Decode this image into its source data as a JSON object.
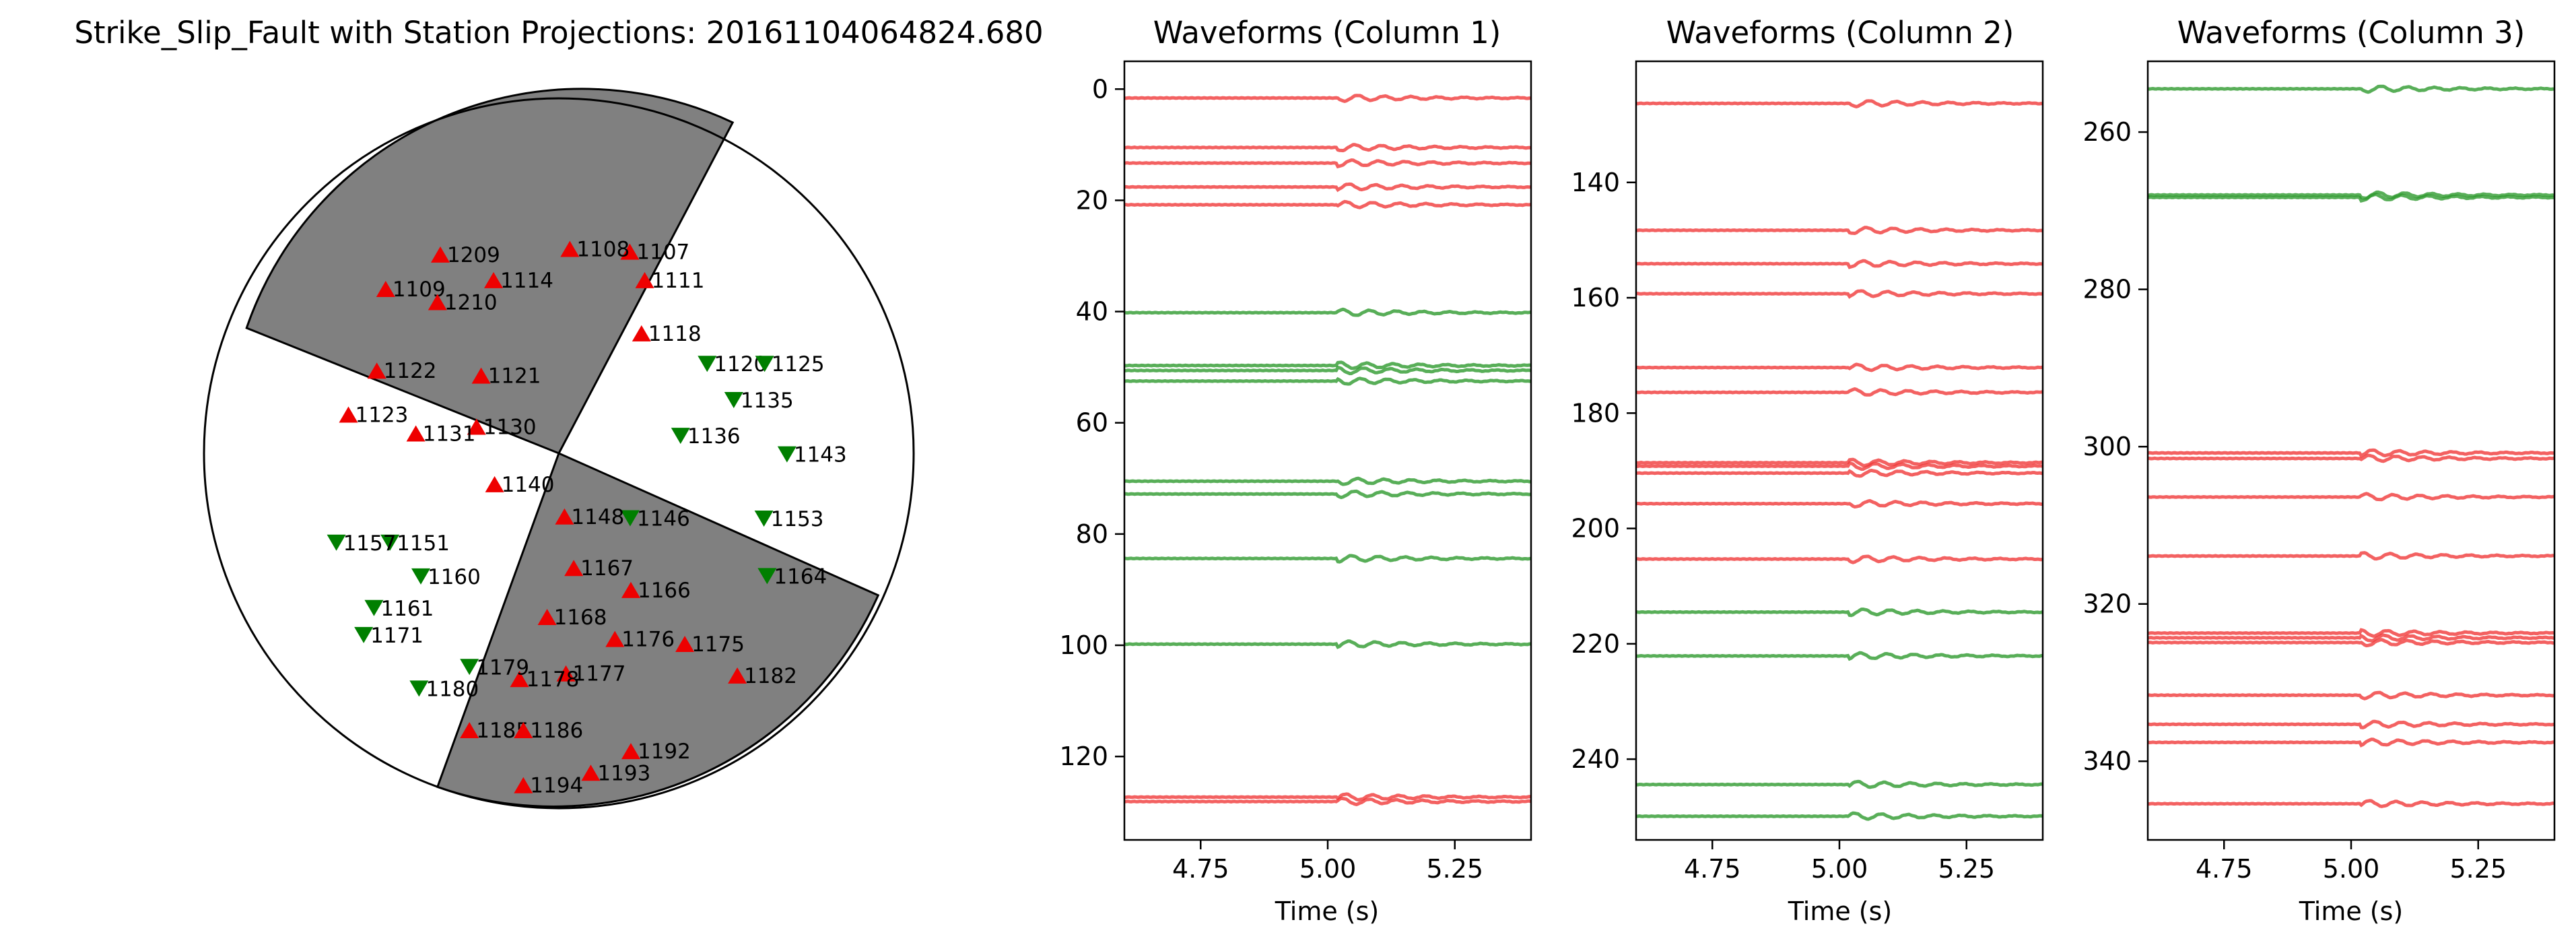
{
  "beachball": {
    "title": "Strike_Slip_Fault with Station Projections: 20161104064824.680",
    "colors": {
      "compressional_fill": "#808080",
      "dilatational_fill": "#ffffff",
      "outline": "#000000"
    },
    "marker_colors": {
      "up": "#ee0000",
      "down": "#007f00"
    },
    "stations": [
      {
        "id": "1107",
        "pol": "up",
        "u": 0.2,
        "v": 0.568
      },
      {
        "id": "1108",
        "pol": "up",
        "u": 0.031,
        "v": 0.576
      },
      {
        "id": "1109",
        "pol": "up",
        "u": -0.488,
        "v": 0.463
      },
      {
        "id": "1111",
        "pol": "up",
        "u": 0.242,
        "v": 0.488
      },
      {
        "id": "1114",
        "pol": "up",
        "u": -0.184,
        "v": 0.488
      },
      {
        "id": "1118",
        "pol": "up",
        "u": 0.233,
        "v": 0.338
      },
      {
        "id": "1120",
        "pol": "down",
        "u": 0.418,
        "v": 0.252
      },
      {
        "id": "1121",
        "pol": "up",
        "u": -0.219,
        "v": 0.219
      },
      {
        "id": "1122",
        "pol": "up",
        "u": -0.513,
        "v": 0.233
      },
      {
        "id": "1123",
        "pol": "up",
        "u": -0.593,
        "v": 0.109
      },
      {
        "id": "1125",
        "pol": "down",
        "u": 0.58,
        "v": 0.252
      },
      {
        "id": "1130",
        "pol": "up",
        "u": -0.232,
        "v": 0.075
      },
      {
        "id": "1131",
        "pol": "up",
        "u": -0.403,
        "v": 0.056
      },
      {
        "id": "1135",
        "pol": "down",
        "u": 0.493,
        "v": 0.15
      },
      {
        "id": "1136",
        "pol": "down",
        "u": 0.343,
        "v": 0.049
      },
      {
        "id": "1140",
        "pol": "up",
        "u": -0.181,
        "v": -0.087
      },
      {
        "id": "1143",
        "pol": "down",
        "u": 0.643,
        "v": -0.003
      },
      {
        "id": "1146",
        "pol": "down",
        "u": 0.201,
        "v": -0.183
      },
      {
        "id": "1148",
        "pol": "up",
        "u": 0.016,
        "v": -0.178
      },
      {
        "id": "1151",
        "pol": "down",
        "u": -0.476,
        "v": -0.252
      },
      {
        "id": "1153",
        "pol": "down",
        "u": 0.578,
        "v": -0.184
      },
      {
        "id": "1157",
        "pol": "down",
        "u": -0.627,
        "v": -0.252
      },
      {
        "id": "1160",
        "pol": "down",
        "u": -0.389,
        "v": -0.347
      },
      {
        "id": "1161",
        "pol": "down",
        "u": -0.521,
        "v": -0.436
      },
      {
        "id": "1164",
        "pol": "down",
        "u": 0.587,
        "v": -0.346
      },
      {
        "id": "1166",
        "pol": "up",
        "u": 0.203,
        "v": -0.385
      },
      {
        "id": "1167",
        "pol": "up",
        "u": 0.042,
        "v": -0.323
      },
      {
        "id": "1168",
        "pol": "up",
        "u": -0.033,
        "v": -0.461
      },
      {
        "id": "1171",
        "pol": "down",
        "u": -0.55,
        "v": -0.512
      },
      {
        "id": "1175",
        "pol": "up",
        "u": 0.355,
        "v": -0.537
      },
      {
        "id": "1176",
        "pol": "up",
        "u": 0.158,
        "v": -0.523
      },
      {
        "id": "1177",
        "pol": "up",
        "u": 0.02,
        "v": -0.62
      },
      {
        "id": "1178",
        "pol": "up",
        "u": -0.111,
        "v": -0.636
      },
      {
        "id": "1179",
        "pol": "down",
        "u": -0.252,
        "v": -0.602
      },
      {
        "id": "1180",
        "pol": "down",
        "u": -0.394,
        "v": -0.663
      },
      {
        "id": "1182",
        "pol": "up",
        "u": 0.503,
        "v": -0.626
      },
      {
        "id": "1185",
        "pol": "up",
        "u": -0.252,
        "v": -0.78
      },
      {
        "id": "1186",
        "pol": "up",
        "u": -0.1,
        "v": -0.78
      },
      {
        "id": "1192",
        "pol": "up",
        "u": 0.203,
        "v": -0.839
      },
      {
        "id": "1193",
        "pol": "up",
        "u": 0.09,
        "v": -0.9
      },
      {
        "id": "1194",
        "pol": "up",
        "u": -0.1,
        "v": -0.935
      },
      {
        "id": "1209",
        "pol": "up",
        "u": -0.334,
        "v": 0.56
      },
      {
        "id": "1210",
        "pol": "up",
        "u": -0.342,
        "v": 0.426
      }
    ]
  },
  "chart_data": [
    {
      "type": "line",
      "title": "Waveforms (Column 1)",
      "xlabel": "Time (s)",
      "ylabel": "",
      "xlim": [
        4.6,
        5.4
      ],
      "ylim": [
        135,
        -5
      ],
      "xticks": [
        "4.75",
        "5.00",
        "5.25"
      ],
      "yticks": [
        "0",
        "20",
        "40",
        "60",
        "80",
        "100",
        "120"
      ],
      "traces": [
        {
          "offset": 1.6,
          "color": "red"
        },
        {
          "offset": 10.5,
          "color": "red"
        },
        {
          "offset": 13.3,
          "color": "red"
        },
        {
          "offset": 17.6,
          "color": "red"
        },
        {
          "offset": 20.8,
          "color": "red"
        },
        {
          "offset": 40.2,
          "color": "green"
        },
        {
          "offset": 49.7,
          "color": "green"
        },
        {
          "offset": 50.6,
          "color": "green"
        },
        {
          "offset": 52.5,
          "color": "green"
        },
        {
          "offset": 70.5,
          "color": "green"
        },
        {
          "offset": 72.8,
          "color": "green"
        },
        {
          "offset": 84.4,
          "color": "green"
        },
        {
          "offset": 99.8,
          "color": "green"
        },
        {
          "offset": 127.3,
          "color": "red"
        },
        {
          "offset": 128.1,
          "color": "red"
        }
      ]
    },
    {
      "type": "line",
      "title": "Waveforms (Column 2)",
      "xlabel": "Time (s)",
      "ylabel": "",
      "xlim": [
        4.6,
        5.4
      ],
      "ylim": [
        254,
        119
      ],
      "xticks": [
        "4.75",
        "5.00",
        "5.25"
      ],
      "yticks": [
        "140",
        "160",
        "180",
        "200",
        "220",
        "240"
      ],
      "traces": [
        {
          "offset": 126.3,
          "color": "red"
        },
        {
          "offset": 148.3,
          "color": "red"
        },
        {
          "offset": 154.1,
          "color": "red"
        },
        {
          "offset": 159.3,
          "color": "red"
        },
        {
          "offset": 172.1,
          "color": "red"
        },
        {
          "offset": 176.4,
          "color": "red"
        },
        {
          "offset": 188.6,
          "color": "red"
        },
        {
          "offset": 189.2,
          "color": "red"
        },
        {
          "offset": 190.4,
          "color": "red"
        },
        {
          "offset": 195.7,
          "color": "red"
        },
        {
          "offset": 205.3,
          "color": "red"
        },
        {
          "offset": 214.5,
          "color": "green"
        },
        {
          "offset": 222.1,
          "color": "green"
        },
        {
          "offset": 244.4,
          "color": "green"
        },
        {
          "offset": 249.9,
          "color": "green"
        }
      ]
    },
    {
      "type": "line",
      "title": "Waveforms (Column 3)",
      "xlabel": "Time (s)",
      "ylabel": "",
      "xlim": [
        4.6,
        5.4
      ],
      "ylim": [
        350,
        251
      ],
      "xticks": [
        "4.75",
        "5.00",
        "5.25"
      ],
      "yticks": [
        "260",
        "280",
        "300",
        "320",
        "340"
      ],
      "traces": [
        {
          "offset": 254.5,
          "color": "green"
        },
        {
          "offset": 268.0,
          "color": "green"
        },
        {
          "offset": 268.3,
          "color": "green"
        },
        {
          "offset": 300.8,
          "color": "red"
        },
        {
          "offset": 301.5,
          "color": "red"
        },
        {
          "offset": 306.4,
          "color": "red"
        },
        {
          "offset": 313.9,
          "color": "red"
        },
        {
          "offset": 323.7,
          "color": "red"
        },
        {
          "offset": 324.3,
          "color": "red"
        },
        {
          "offset": 324.9,
          "color": "red"
        },
        {
          "offset": 331.6,
          "color": "red"
        },
        {
          "offset": 335.3,
          "color": "red"
        },
        {
          "offset": 337.6,
          "color": "red"
        },
        {
          "offset": 345.4,
          "color": "red"
        }
      ]
    }
  ],
  "trace_colors": {
    "red": "#f03a3a",
    "green": "#2e9a2e"
  }
}
